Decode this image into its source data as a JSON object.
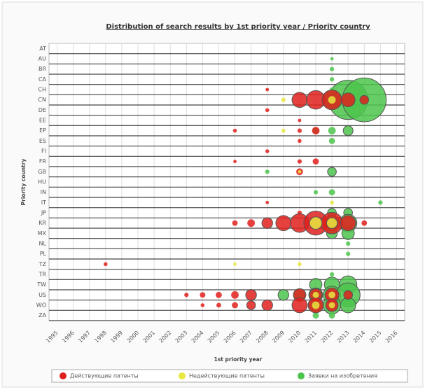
{
  "chart_data": {
    "type": "bubble",
    "title": "Distribution of search results by 1st priority year / Priority country",
    "x_label": "1st priority year",
    "y_label": "Priority country",
    "x_categories": [
      "1995",
      "1996",
      "1997",
      "1998",
      "1999",
      "2000",
      "2001",
      "2002",
      "2003",
      "2004",
      "2005",
      "2006",
      "2007",
      "2008",
      "2009",
      "2010",
      "2011",
      "2012",
      "2013",
      "2014",
      "2015",
      "2016"
    ],
    "y_categories": [
      "AT",
      "AU",
      "BR",
      "CA",
      "CH",
      "CN",
      "DE",
      "EE",
      "EP",
      "ES",
      "FI",
      "FR",
      "GB",
      "HU",
      "IN",
      "IT",
      "JP",
      "KR",
      "MX",
      "NL",
      "PL",
      "TZ",
      "TR",
      "TW",
      "US",
      "WO",
      "ZA"
    ],
    "grid": true,
    "series": [
      {
        "name": "Заявки на изобретения",
        "color": "#4cc44c",
        "x": [
          "2013",
          "2014",
          "2012",
          "2012",
          "2012",
          "2012",
          "2012",
          "2011",
          "2012",
          "2013",
          "2012",
          "2008",
          "2012",
          "2011",
          "2012",
          "2015",
          "2012",
          "2013",
          "2012",
          "2013",
          "2012",
          "2013",
          "2013",
          "2013",
          "2012",
          "2011",
          "2012",
          "2013",
          "2009",
          "2010",
          "2011",
          "2012",
          "2013",
          "2011",
          "2012",
          "2013",
          "2011",
          "2012"
        ],
        "y": [
          "CN",
          "CN",
          "CN",
          "AU",
          "BR",
          "CA",
          "CH",
          "EP",
          "EP",
          "EP",
          "ES",
          "GB",
          "GB",
          "IN",
          "IN",
          "IT",
          "JP",
          "JP",
          "KR",
          "KR",
          "MX",
          "MX",
          "NL",
          "PL",
          "TR",
          "TW",
          "TW",
          "TW",
          "US",
          "US",
          "US",
          "US",
          "US",
          "WO",
          "WO",
          "WO",
          "ZA",
          "ZA"
        ],
        "sizes": [
          400,
          500,
          100,
          3,
          5,
          5,
          5,
          10,
          15,
          25,
          10,
          5,
          20,
          5,
          10,
          5,
          20,
          20,
          60,
          80,
          30,
          40,
          5,
          5,
          5,
          40,
          60,
          80,
          30,
          40,
          50,
          80,
          150,
          60,
          80,
          60,
          10,
          10
        ]
      },
      {
        "name": "Действующие патенты",
        "color": "#e0201c",
        "x": [
          "2010",
          "2011",
          "2012",
          "2013",
          "2014",
          "2008",
          "2008",
          "2010",
          "2006",
          "2010",
          "2011",
          "2010",
          "2008",
          "2006",
          "2010",
          "2011",
          "2010",
          "2008",
          "2010",
          "2006",
          "2007",
          "2008",
          "2009",
          "2010",
          "2011",
          "2012",
          "2013",
          "2014",
          "1998",
          "2003",
          "2004",
          "2005",
          "2006",
          "2007",
          "2010",
          "2011",
          "2012",
          "2013",
          "2004",
          "2005",
          "2006",
          "2007",
          "2008",
          "2010",
          "2011",
          "2012"
        ],
        "y": [
          "CN",
          "CN",
          "CN",
          "CN",
          "CN",
          "CH",
          "DE",
          "EE",
          "EP",
          "EP",
          "EP",
          "ES",
          "FI",
          "FR",
          "FR",
          "FR",
          "GB",
          "IT",
          "JP",
          "KR",
          "KR",
          "KR",
          "KR",
          "KR",
          "KR",
          "KR",
          "KR",
          "KR",
          "TZ",
          "US",
          "US",
          "US",
          "US",
          "US",
          "US",
          "US",
          "US",
          "US",
          "WO",
          "WO",
          "WO",
          "WO",
          "WO",
          "WO",
          "WO",
          "WO"
        ],
        "sizes": [
          60,
          90,
          100,
          50,
          20,
          3,
          4,
          3,
          4,
          5,
          15,
          4,
          4,
          3,
          5,
          10,
          12,
          3,
          5,
          8,
          15,
          30,
          60,
          90,
          150,
          120,
          60,
          8,
          4,
          5,
          8,
          10,
          15,
          30,
          40,
          40,
          50,
          20,
          4,
          6,
          10,
          20,
          30,
          60,
          60,
          40
        ]
      },
      {
        "name": "Недействующие патенты",
        "color": "#e8e840",
        "x": [
          "2009",
          "2012",
          "2009",
          "2010",
          "2012",
          "2011",
          "2012",
          "2006",
          "2010",
          "2011",
          "2012",
          "2011",
          "2012"
        ],
        "y": [
          "CN",
          "CN",
          "EP",
          "GB",
          "IT",
          "KR",
          "KR",
          "TZ",
          "TZ",
          "US",
          "US",
          "WO",
          "WO"
        ],
        "sizes": [
          5,
          15,
          4,
          3,
          4,
          40,
          30,
          3,
          4,
          10,
          12,
          15,
          10
        ]
      }
    ]
  }
}
